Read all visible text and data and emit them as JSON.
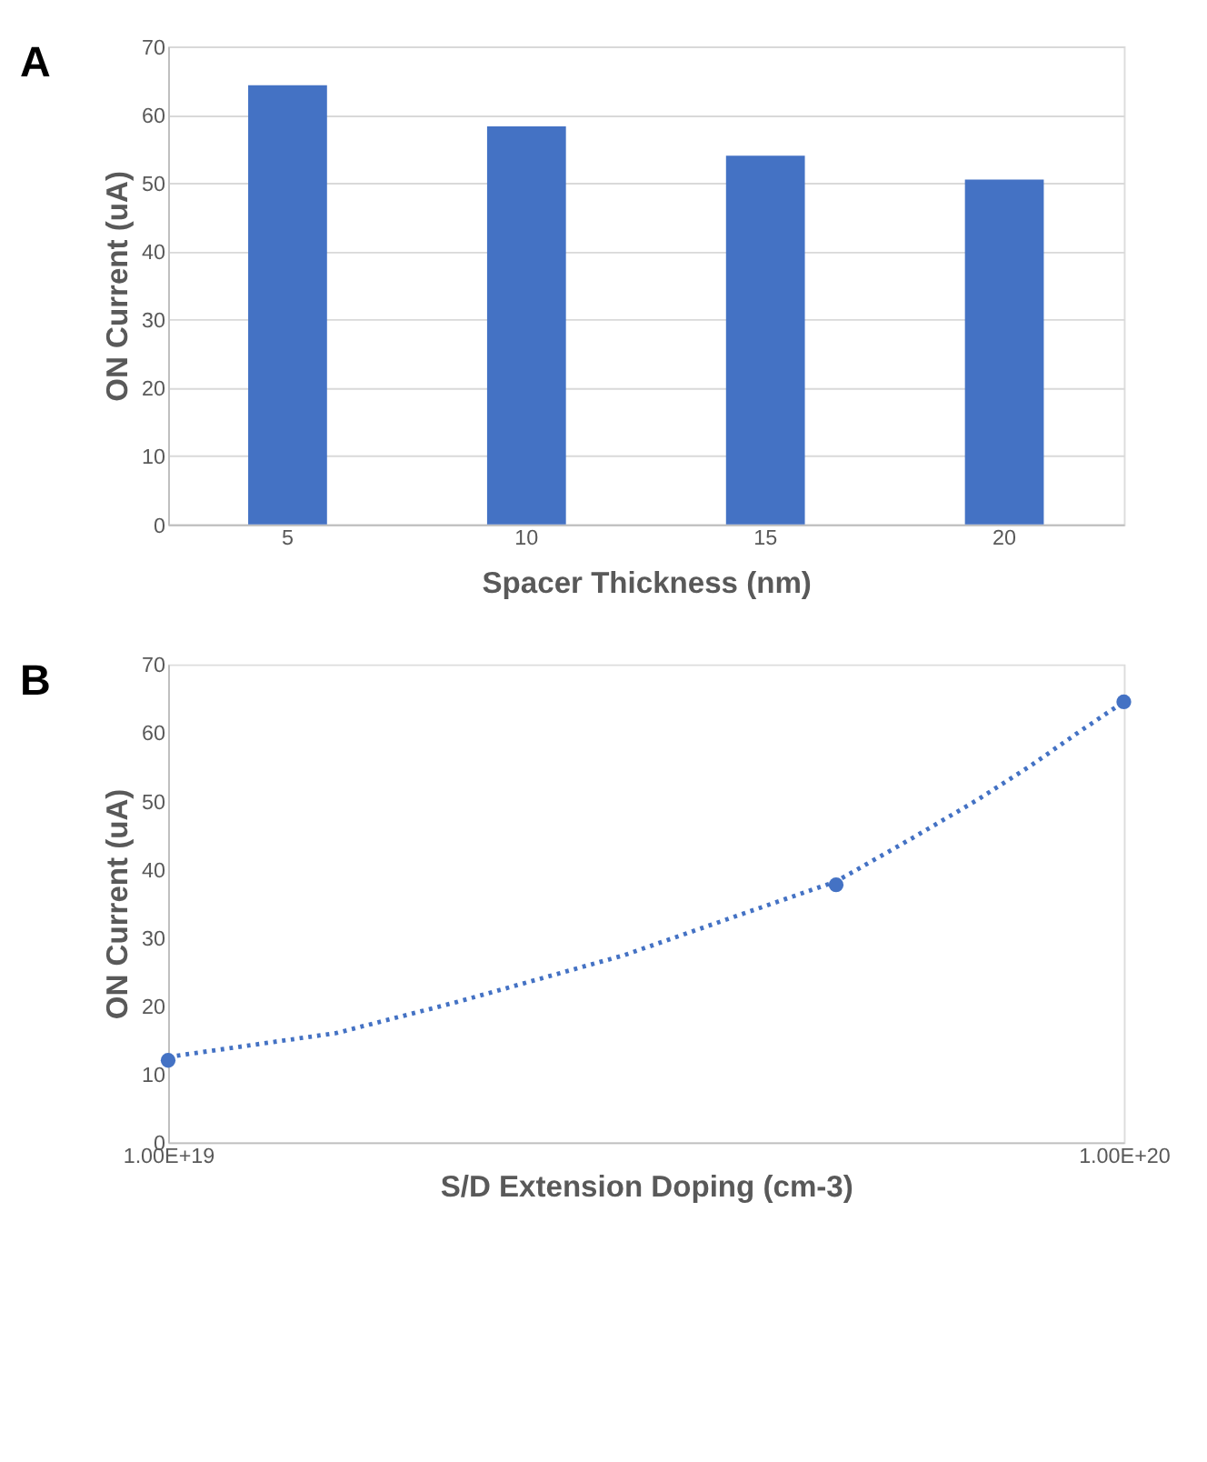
{
  "chart_data": [
    {
      "type": "bar",
      "annotations": [
        "A"
      ],
      "categories": [
        "5",
        "10",
        "15",
        "20"
      ],
      "values": [
        64.3,
        58.3,
        54.0,
        50.5
      ],
      "color": "#4472c4",
      "xlabel": "Spacer Thickness (nm)",
      "ylabel": "ON Current (uA)",
      "ylim": [
        0,
        70
      ],
      "yticks": [
        0,
        10,
        20,
        30,
        40,
        50,
        60,
        70
      ],
      "grid": "y"
    },
    {
      "type": "scatter",
      "annotations": [
        "B"
      ],
      "xlabel": "S/D Extension Doping (cm-3)",
      "ylabel": "ON Current (uA)",
      "log": "x",
      "xlim": [
        1e+19,
        1e+20
      ],
      "xticks": [
        {
          "value": 1e+19,
          "label": "1.00E+19"
        },
        {
          "value": 1e+20,
          "label": "1.00E+20"
        }
      ],
      "ylim": [
        0,
        70
      ],
      "yticks": [
        0,
        10,
        20,
        30,
        40,
        50,
        60,
        70
      ],
      "grid": false,
      "series": [
        {
          "type": "line",
          "color": "#4472c4",
          "line_style": "dotted",
          "marker": "none",
          "x": [
            1e+19,
            1.5e+19,
            2e+19,
            3e+19,
            4e+19,
            5e+19,
            6e+19,
            7e+19,
            8e+19,
            9e+19,
            1e+20
          ],
          "values": [
            12.5,
            16.0,
            20.5,
            27.4,
            33.5,
            38.2,
            44.5,
            50.0,
            55.2,
            60.2,
            64.5
          ]
        },
        {
          "type": "scatter",
          "color": "#4472c4",
          "marker": "circle",
          "x": [
            1e+19,
            5e+19,
            1e+20
          ],
          "values": [
            12.0,
            37.7,
            64.5
          ]
        }
      ]
    }
  ]
}
